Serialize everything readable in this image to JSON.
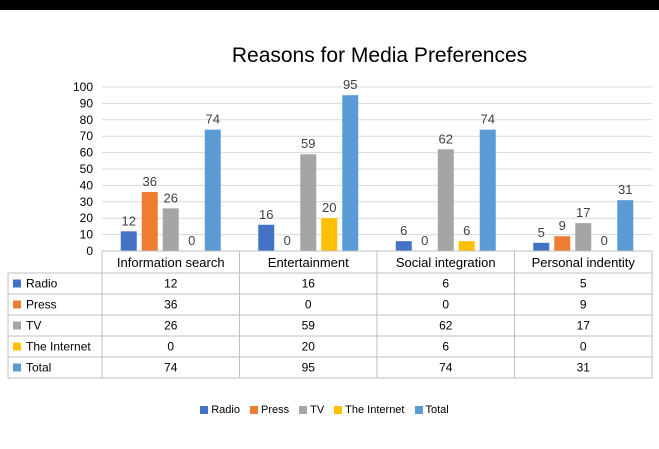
{
  "chart_data": {
    "type": "bar",
    "title": "Reasons for Media Preferences",
    "categories": [
      "Information search",
      "Entertainment",
      "Social integration",
      "Personal indentity"
    ],
    "series": [
      {
        "name": "Radio",
        "values": [
          12,
          16,
          6,
          5
        ],
        "color": "#4472C4"
      },
      {
        "name": "Press",
        "values": [
          36,
          0,
          0,
          9
        ],
        "color": "#ED7D31"
      },
      {
        "name": "TV",
        "values": [
          26,
          59,
          62,
          17
        ],
        "color": "#A5A5A5"
      },
      {
        "name": "The Internet",
        "values": [
          0,
          20,
          6,
          0
        ],
        "color": "#FFC000"
      },
      {
        "name": "Total",
        "values": [
          74,
          95,
          74,
          31
        ],
        "color": "#5B9BD5"
      }
    ],
    "ylim": [
      0,
      100
    ],
    "yticks": [
      0,
      10,
      20,
      30,
      40,
      50,
      60,
      70,
      80,
      90,
      100
    ],
    "grid": true,
    "data_table": true,
    "legend_position": "bottom"
  }
}
